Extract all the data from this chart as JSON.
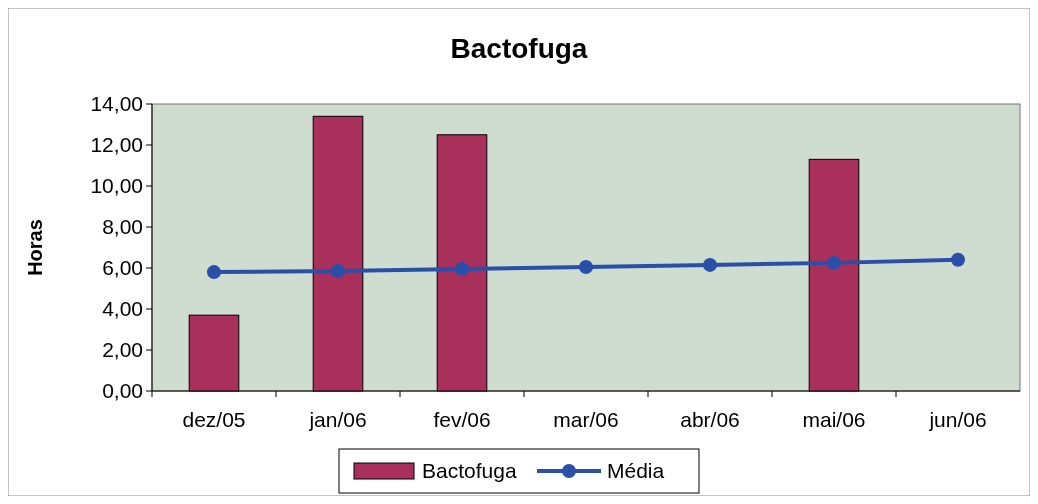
{
  "chart_data": {
    "type": "bar",
    "title": "Bactofuga",
    "ylabel": "Horas",
    "categories": [
      "dez/05",
      "jan/06",
      "fev/06",
      "mar/06",
      "abr/06",
      "mai/06",
      "jun/06"
    ],
    "series": [
      {
        "name": "Bactofuga",
        "color": "#a8305a",
        "values": [
          3.7,
          13.4,
          12.5,
          null,
          null,
          11.3,
          null
        ]
      },
      {
        "name": "Média",
        "type": "line",
        "color": "#2a4fa8",
        "marker": "circle",
        "values": [
          5.8,
          5.85,
          5.95,
          6.05,
          6.15,
          6.25,
          6.4
        ]
      }
    ],
    "ylim": [
      0,
      14
    ],
    "yticks": [
      {
        "value": 0,
        "label": "0,00"
      },
      {
        "value": 2,
        "label": "2,00"
      },
      {
        "value": 4,
        "label": "4,00"
      },
      {
        "value": 6,
        "label": "6,00"
      },
      {
        "value": 8,
        "label": "8,00"
      },
      {
        "value": 10,
        "label": "10,00"
      },
      {
        "value": 12,
        "label": "12,00"
      },
      {
        "value": 14,
        "label": "14,00"
      }
    ],
    "legend": "bottom"
  }
}
